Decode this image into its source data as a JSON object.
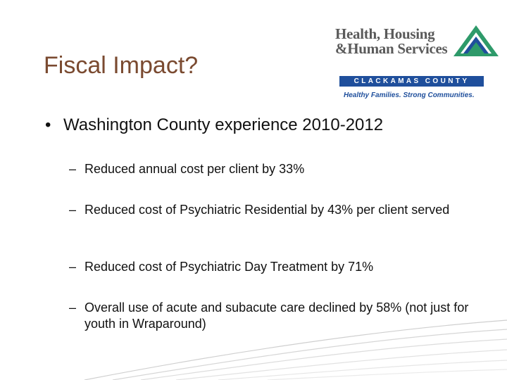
{
  "slide": {
    "title": "Fiscal Impact?",
    "logo": {
      "line1": "Health, Housing",
      "line2": "&Human Services",
      "county": "CLACKAMAS COUNTY",
      "tagline": "Healthy Families. Strong Communities."
    },
    "bullet": "Washington County experience 2010-2012",
    "sub_bullets": [
      "Reduced annual cost per client by 33%",
      "Reduced cost of Psychiatric Residential by 43% per client served",
      "Reduced cost of Psychiatric Day Treatment by 71%",
      "Overall use of acute and subacute care declined by 58% (not just for youth in Wraparound)"
    ],
    "bullet_symbol": "•",
    "dash_symbol": "–",
    "colors": {
      "title": "#7a4a30",
      "logo_blue": "#1f4f9c",
      "logo_green": "#2e9a6a",
      "swoosh_gray": "#cfcfcf"
    }
  }
}
